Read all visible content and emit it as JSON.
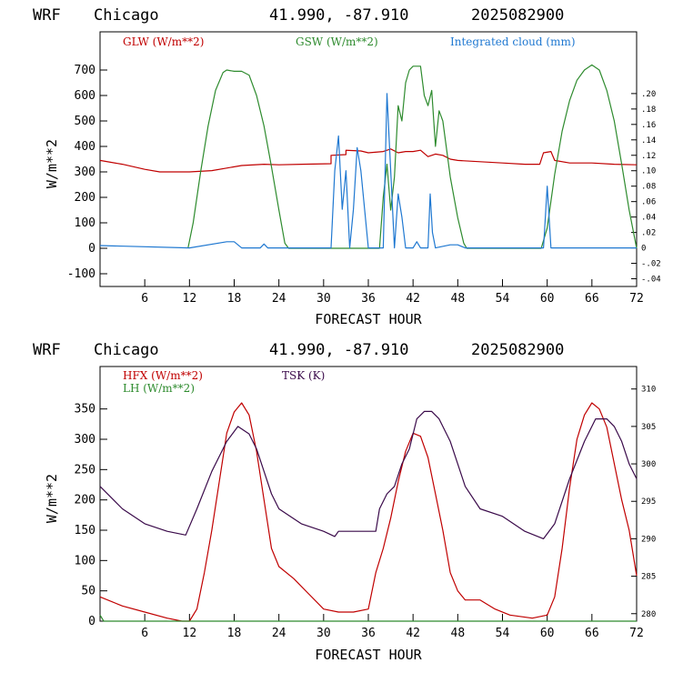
{
  "chart_data": [
    {
      "type": "line",
      "title_parts": {
        "model": "WRF",
        "location": "Chicago",
        "coords": "41.990, -87.910",
        "run": "2025082900"
      },
      "xlabel": "FORECAST HOUR",
      "ylabel": "W/m**2",
      "xlim": [
        0,
        72
      ],
      "ylim": [
        -150,
        850
      ],
      "y2lim": [
        -0.05,
        0.28
      ],
      "xticks": [
        "6",
        "12",
        "18",
        "24",
        "30",
        "36",
        "42",
        "48",
        "54",
        "60",
        "66",
        "72"
      ],
      "xtick_values": [
        6,
        12,
        18,
        24,
        30,
        36,
        42,
        48,
        54,
        60,
        66,
        72
      ],
      "yticks": [
        "-100",
        "0",
        "100",
        "200",
        "300",
        "400",
        "500",
        "600",
        "700"
      ],
      "ytick_values": [
        -100,
        0,
        100,
        200,
        300,
        400,
        500,
        600,
        700
      ],
      "y2ticks": [
        ".20",
        ".18",
        ".16",
        ".14",
        ".12",
        ".10",
        ".08",
        ".06",
        ".04",
        ".02",
        "0",
        "-.02",
        "-.04"
      ],
      "y2tick_values": [
        0.2,
        0.18,
        0.16,
        0.14,
        0.12,
        0.1,
        0.08,
        0.06,
        0.04,
        0.02,
        0,
        -0.02,
        -0.04
      ],
      "legend": [
        "GLW (W/m**2)",
        "GSW (W/m**2)",
        "Integrated cloud (mm)"
      ],
      "series": [
        {
          "name": "GLW (W/m**2)",
          "color": "#c00000",
          "axis": "left",
          "step": false,
          "points": [
            [
              0,
              345
            ],
            [
              3,
              330
            ],
            [
              6,
              310
            ],
            [
              8,
              300
            ],
            [
              12,
              300
            ],
            [
              15,
              305
            ],
            [
              17,
              315
            ],
            [
              19,
              325
            ],
            [
              22,
              330
            ],
            [
              24,
              328
            ],
            [
              27,
              330
            ],
            [
              31,
              332
            ],
            [
              31,
              365
            ],
            [
              33,
              368
            ],
            [
              33,
              385
            ],
            [
              35,
              382
            ],
            [
              36,
              375
            ],
            [
              38,
              380
            ],
            [
              39,
              390
            ],
            [
              40,
              375
            ],
            [
              41,
              380
            ],
            [
              42,
              380
            ],
            [
              43,
              385
            ],
            [
              44,
              360
            ],
            [
              45,
              370
            ],
            [
              46,
              365
            ],
            [
              47,
              350
            ],
            [
              48,
              345
            ],
            [
              51,
              340
            ],
            [
              54,
              335
            ],
            [
              57,
              330
            ],
            [
              59,
              330
            ],
            [
              59.5,
              375
            ],
            [
              60.5,
              380
            ],
            [
              61,
              345
            ],
            [
              63,
              335
            ],
            [
              66,
              335
            ],
            [
              69,
              330
            ],
            [
              72,
              328
            ]
          ]
        },
        {
          "name": "GSW (W/m**2)",
          "color": "#2e8b2e",
          "axis": "left",
          "step": false,
          "points": [
            [
              11.8,
              0
            ],
            [
              12.5,
              100
            ],
            [
              13.5,
              300
            ],
            [
              14.5,
              480
            ],
            [
              15.5,
              620
            ],
            [
              16.5,
              690
            ],
            [
              17,
              700
            ],
            [
              18,
              695
            ],
            [
              19,
              695
            ],
            [
              20,
              680
            ],
            [
              21,
              600
            ],
            [
              22,
              480
            ],
            [
              23,
              320
            ],
            [
              24,
              150
            ],
            [
              24.8,
              20
            ],
            [
              25.3,
              0
            ],
            [
              37.5,
              0
            ],
            [
              38,
              200
            ],
            [
              38.5,
              330
            ],
            [
              39,
              150
            ],
            [
              39.5,
              280
            ],
            [
              40,
              560
            ],
            [
              40.5,
              500
            ],
            [
              41,
              650
            ],
            [
              41.5,
              700
            ],
            [
              42,
              715
            ],
            [
              43,
              715
            ],
            [
              43.5,
              600
            ],
            [
              44,
              560
            ],
            [
              44.5,
              620
            ],
            [
              45,
              400
            ],
            [
              45.5,
              540
            ],
            [
              46,
              500
            ],
            [
              47,
              280
            ],
            [
              48,
              120
            ],
            [
              48.8,
              20
            ],
            [
              49.2,
              0
            ],
            [
              59.2,
              0
            ],
            [
              60,
              80
            ],
            [
              61,
              290
            ],
            [
              62,
              460
            ],
            [
              63,
              580
            ],
            [
              64,
              660
            ],
            [
              65,
              700
            ],
            [
              66,
              720
            ],
            [
              67,
              700
            ],
            [
              68,
              620
            ],
            [
              69,
              500
            ],
            [
              70,
              330
            ],
            [
              71,
              150
            ],
            [
              72,
              0
            ]
          ]
        },
        {
          "name": "Integrated cloud (mm)",
          "color": "#1f78d1",
          "axis": "right",
          "step": false,
          "points": [
            [
              0,
              0.003
            ],
            [
              12,
              0
            ],
            [
              17,
              0.008
            ],
            [
              18,
              0.008
            ],
            [
              19,
              0
            ],
            [
              21.5,
              0
            ],
            [
              22,
              0.005
            ],
            [
              22.5,
              0
            ],
            [
              31,
              0
            ],
            [
              31.5,
              0.1
            ],
            [
              32,
              0.145
            ],
            [
              32.5,
              0.05
            ],
            [
              33,
              0.1
            ],
            [
              33.5,
              0
            ],
            [
              34,
              0.05
            ],
            [
              34.5,
              0.13
            ],
            [
              35,
              0.1
            ],
            [
              35.5,
              0.05
            ],
            [
              36,
              0
            ],
            [
              38,
              0
            ],
            [
              38.5,
              0.2
            ],
            [
              39,
              0.1
            ],
            [
              39.5,
              0
            ],
            [
              40,
              0.07
            ],
            [
              40.5,
              0.04
            ],
            [
              41,
              0
            ],
            [
              42,
              0
            ],
            [
              42.5,
              0.008
            ],
            [
              43,
              0
            ],
            [
              44,
              0
            ],
            [
              44.3,
              0.07
            ],
            [
              44.6,
              0.02
            ],
            [
              45,
              0
            ],
            [
              47,
              0.004
            ],
            [
              48,
              0.004
            ],
            [
              49,
              0
            ],
            [
              59.5,
              0
            ],
            [
              60,
              0.08
            ],
            [
              60.5,
              0
            ],
            [
              72,
              0
            ]
          ]
        }
      ]
    },
    {
      "type": "line",
      "title_parts": {
        "model": "WRF",
        "location": "Chicago",
        "coords": "41.990, -87.910",
        "run": "2025082900"
      },
      "xlabel": "FORECAST HOUR",
      "ylabel": "W/m**2",
      "xlim": [
        0,
        72
      ],
      "ylim": [
        0,
        420
      ],
      "y2lim": [
        279,
        313
      ],
      "xticks": [
        "6",
        "12",
        "18",
        "24",
        "30",
        "36",
        "42",
        "48",
        "54",
        "60",
        "66",
        "72"
      ],
      "xtick_values": [
        6,
        12,
        18,
        24,
        30,
        36,
        42,
        48,
        54,
        60,
        66,
        72
      ],
      "yticks": [
        "0",
        "50",
        "100",
        "150",
        "200",
        "250",
        "300",
        "350"
      ],
      "ytick_values": [
        0,
        50,
        100,
        150,
        200,
        250,
        300,
        350
      ],
      "y2ticks": [
        "310",
        "305",
        "300",
        "295",
        "290",
        "285",
        "280"
      ],
      "y2tick_values": [
        310,
        305,
        300,
        295,
        290,
        285,
        280
      ],
      "legend": [
        "HFX (W/m**2)",
        "LH (W/m**2)",
        "TSK (K)"
      ],
      "series": [
        {
          "name": "HFX (W/m**2)",
          "color": "#c00000",
          "axis": "left",
          "step": false,
          "points": [
            [
              0,
              40
            ],
            [
              3,
              25
            ],
            [
              6,
              15
            ],
            [
              9,
              5
            ],
            [
              11,
              0
            ],
            [
              12,
              0
            ],
            [
              13,
              20
            ],
            [
              14,
              80
            ],
            [
              15,
              150
            ],
            [
              16,
              230
            ],
            [
              17,
              310
            ],
            [
              18,
              345
            ],
            [
              19,
              360
            ],
            [
              20,
              340
            ],
            [
              21,
              280
            ],
            [
              22,
              200
            ],
            [
              23,
              120
            ],
            [
              24,
              90
            ],
            [
              26,
              70
            ],
            [
              28,
              45
            ],
            [
              30,
              20
            ],
            [
              32,
              15
            ],
            [
              34,
              15
            ],
            [
              36,
              20
            ],
            [
              37,
              80
            ],
            [
              38,
              120
            ],
            [
              39,
              170
            ],
            [
              40,
              230
            ],
            [
              41,
              280
            ],
            [
              42,
              310
            ],
            [
              43,
              305
            ],
            [
              44,
              270
            ],
            [
              45,
              210
            ],
            [
              46,
              150
            ],
            [
              47,
              80
            ],
            [
              48,
              50
            ],
            [
              49,
              35
            ],
            [
              51,
              35
            ],
            [
              53,
              20
            ],
            [
              55,
              10
            ],
            [
              58,
              5
            ],
            [
              60,
              10
            ],
            [
              61,
              40
            ],
            [
              62,
              120
            ],
            [
              63,
              220
            ],
            [
              64,
              300
            ],
            [
              65,
              340
            ],
            [
              66,
              360
            ],
            [
              67,
              350
            ],
            [
              68,
              320
            ],
            [
              69,
              260
            ],
            [
              70,
              200
            ],
            [
              71,
              150
            ],
            [
              72,
              75
            ]
          ]
        },
        {
          "name": "LH (W/m**2)",
          "color": "#2e8b2e",
          "axis": "left",
          "step": false,
          "points": [
            [
              0,
              10
            ],
            [
              0.5,
              0
            ],
            [
              1,
              0
            ],
            [
              72,
              0
            ]
          ]
        },
        {
          "name": "TSK (K)",
          "color": "#3a0a4a",
          "axis": "right",
          "step": false,
          "points": [
            [
              0,
              297
            ],
            [
              3,
              294
            ],
            [
              6,
              292
            ],
            [
              9,
              291
            ],
            [
              11.5,
              290.5
            ],
            [
              13,
              294
            ],
            [
              15,
              299
            ],
            [
              17,
              303
            ],
            [
              18.5,
              305
            ],
            [
              20,
              304
            ],
            [
              21,
              302
            ],
            [
              22,
              299
            ],
            [
              23,
              296
            ],
            [
              24,
              294
            ],
            [
              27,
              292
            ],
            [
              30,
              291
            ],
            [
              31.5,
              290.3
            ],
            [
              32,
              291
            ],
            [
              36,
              291
            ],
            [
              37,
              291
            ],
            [
              37.5,
              294
            ],
            [
              38.5,
              296
            ],
            [
              39.5,
              297
            ],
            [
              40.5,
              300
            ],
            [
              41.5,
              302
            ],
            [
              42.5,
              306
            ],
            [
              43.5,
              307
            ],
            [
              44.5,
              307
            ],
            [
              45.5,
              306
            ],
            [
              47,
              303
            ],
            [
              48,
              300
            ],
            [
              49,
              297
            ],
            [
              51,
              294
            ],
            [
              54,
              293
            ],
            [
              57,
              291
            ],
            [
              59.5,
              290
            ],
            [
              61,
              292
            ],
            [
              63,
              298
            ],
            [
              65,
              303
            ],
            [
              66.5,
              306
            ],
            [
              68,
              306
            ],
            [
              69,
              305
            ],
            [
              70,
              303
            ],
            [
              71,
              300
            ],
            [
              72,
              298
            ]
          ]
        }
      ]
    }
  ]
}
